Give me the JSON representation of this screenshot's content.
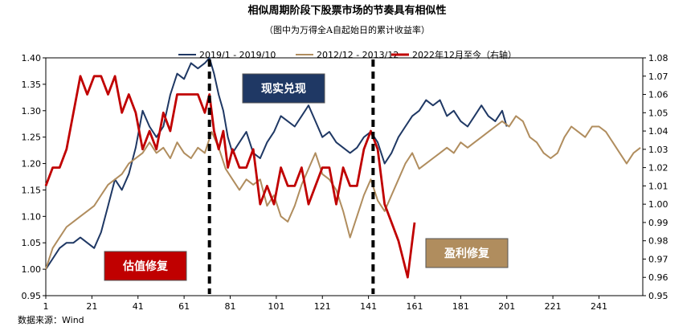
{
  "chart_data": {
    "type": "line",
    "title": "相似周期阶段下股票市场的节奏具有相似性",
    "subtitle": "（图中为万得全A自起始日的累计收益率）",
    "source": "数据来源：Wind",
    "x_ticks": [
      1,
      21,
      41,
      61,
      81,
      101,
      121,
      141,
      161,
      181,
      201,
      221,
      241
    ],
    "x_range": [
      1,
      260
    ],
    "y_left": {
      "range": [
        0.95,
        1.4
      ],
      "ticks": [
        "0.95",
        "1.00",
        "1.05",
        "1.10",
        "1.15",
        "1.20",
        "1.25",
        "1.30",
        "1.35",
        "1.40"
      ]
    },
    "y_right": {
      "range": [
        0.95,
        1.08
      ],
      "ticks": [
        "0.95",
        "0.96",
        "0.97",
        "0.98",
        "0.99",
        "1.00",
        "1.01",
        "1.02",
        "1.03",
        "1.04",
        "1.05",
        "1.06",
        "1.07",
        "1.08"
      ]
    },
    "legend_position": "top",
    "series": [
      {
        "name": "2019/1 - 2019/10",
        "color": "#1f3864",
        "axis": "left",
        "points": [
          [
            1,
            1.0
          ],
          [
            4,
            1.02
          ],
          [
            7,
            1.04
          ],
          [
            10,
            1.05
          ],
          [
            13,
            1.05
          ],
          [
            16,
            1.06
          ],
          [
            19,
            1.05
          ],
          [
            22,
            1.04
          ],
          [
            25,
            1.07
          ],
          [
            28,
            1.12
          ],
          [
            31,
            1.17
          ],
          [
            34,
            1.15
          ],
          [
            37,
            1.18
          ],
          [
            40,
            1.23
          ],
          [
            43,
            1.3
          ],
          [
            46,
            1.27
          ],
          [
            49,
            1.25
          ],
          [
            52,
            1.27
          ],
          [
            55,
            1.33
          ],
          [
            58,
            1.37
          ],
          [
            61,
            1.36
          ],
          [
            64,
            1.39
          ],
          [
            67,
            1.38
          ],
          [
            70,
            1.39
          ],
          [
            72,
            1.4
          ],
          [
            74,
            1.37
          ],
          [
            76,
            1.33
          ],
          [
            78,
            1.3
          ],
          [
            80,
            1.25
          ],
          [
            82,
            1.22
          ],
          [
            85,
            1.24
          ],
          [
            88,
            1.26
          ],
          [
            91,
            1.22
          ],
          [
            94,
            1.21
          ],
          [
            97,
            1.24
          ],
          [
            100,
            1.26
          ],
          [
            103,
            1.29
          ],
          [
            106,
            1.28
          ],
          [
            109,
            1.27
          ],
          [
            112,
            1.29
          ],
          [
            115,
            1.31
          ],
          [
            118,
            1.28
          ],
          [
            121,
            1.25
          ],
          [
            124,
            1.26
          ],
          [
            127,
            1.24
          ],
          [
            130,
            1.23
          ],
          [
            133,
            1.22
          ],
          [
            136,
            1.23
          ],
          [
            139,
            1.25
          ],
          [
            142,
            1.26
          ],
          [
            145,
            1.24
          ],
          [
            148,
            1.2
          ],
          [
            151,
            1.22
          ],
          [
            154,
            1.25
          ],
          [
            157,
            1.27
          ],
          [
            160,
            1.29
          ],
          [
            163,
            1.3
          ],
          [
            166,
            1.32
          ],
          [
            169,
            1.31
          ],
          [
            172,
            1.32
          ],
          [
            175,
            1.29
          ],
          [
            178,
            1.3
          ],
          [
            181,
            1.28
          ],
          [
            184,
            1.27
          ],
          [
            187,
            1.29
          ],
          [
            190,
            1.31
          ],
          [
            193,
            1.29
          ],
          [
            196,
            1.28
          ],
          [
            199,
            1.3
          ],
          [
            201,
            1.27
          ]
        ]
      },
      {
        "name": "2012/12 - 2013/12",
        "color": "#b08d5e",
        "axis": "left",
        "points": [
          [
            1,
            1.0
          ],
          [
            4,
            1.04
          ],
          [
            7,
            1.06
          ],
          [
            10,
            1.08
          ],
          [
            13,
            1.09
          ],
          [
            16,
            1.1
          ],
          [
            19,
            1.11
          ],
          [
            22,
            1.12
          ],
          [
            25,
            1.14
          ],
          [
            28,
            1.16
          ],
          [
            31,
            1.17
          ],
          [
            34,
            1.18
          ],
          [
            37,
            1.2
          ],
          [
            40,
            1.21
          ],
          [
            43,
            1.22
          ],
          [
            46,
            1.24
          ],
          [
            49,
            1.22
          ],
          [
            52,
            1.23
          ],
          [
            55,
            1.21
          ],
          [
            58,
            1.24
          ],
          [
            61,
            1.22
          ],
          [
            64,
            1.21
          ],
          [
            67,
            1.23
          ],
          [
            70,
            1.22
          ],
          [
            73,
            1.26
          ],
          [
            76,
            1.23
          ],
          [
            79,
            1.19
          ],
          [
            82,
            1.17
          ],
          [
            85,
            1.15
          ],
          [
            88,
            1.17
          ],
          [
            91,
            1.16
          ],
          [
            94,
            1.17
          ],
          [
            97,
            1.12
          ],
          [
            100,
            1.14
          ],
          [
            103,
            1.1
          ],
          [
            106,
            1.09
          ],
          [
            109,
            1.12
          ],
          [
            112,
            1.16
          ],
          [
            115,
            1.19
          ],
          [
            118,
            1.22
          ],
          [
            121,
            1.18
          ],
          [
            124,
            1.17
          ],
          [
            127,
            1.15
          ],
          [
            130,
            1.11
          ],
          [
            133,
            1.06
          ],
          [
            136,
            1.1
          ],
          [
            139,
            1.14
          ],
          [
            142,
            1.17
          ],
          [
            145,
            1.13
          ],
          [
            148,
            1.11
          ],
          [
            151,
            1.14
          ],
          [
            154,
            1.17
          ],
          [
            157,
            1.2
          ],
          [
            160,
            1.22
          ],
          [
            163,
            1.19
          ],
          [
            166,
            1.2
          ],
          [
            169,
            1.21
          ],
          [
            172,
            1.22
          ],
          [
            175,
            1.23
          ],
          [
            178,
            1.22
          ],
          [
            181,
            1.24
          ],
          [
            184,
            1.23
          ],
          [
            187,
            1.24
          ],
          [
            190,
            1.25
          ],
          [
            193,
            1.26
          ],
          [
            196,
            1.27
          ],
          [
            199,
            1.28
          ],
          [
            202,
            1.27
          ],
          [
            205,
            1.29
          ],
          [
            208,
            1.28
          ],
          [
            211,
            1.25
          ],
          [
            214,
            1.24
          ],
          [
            217,
            1.22
          ],
          [
            220,
            1.21
          ],
          [
            223,
            1.22
          ],
          [
            226,
            1.25
          ],
          [
            229,
            1.27
          ],
          [
            232,
            1.26
          ],
          [
            235,
            1.25
          ],
          [
            238,
            1.27
          ],
          [
            241,
            1.27
          ],
          [
            244,
            1.26
          ],
          [
            247,
            1.24
          ],
          [
            250,
            1.22
          ],
          [
            253,
            1.2
          ],
          [
            256,
            1.22
          ],
          [
            259,
            1.23
          ]
        ]
      },
      {
        "name": "2022年12月至今（右轴）",
        "color": "#c00000",
        "axis": "right",
        "points": [
          [
            1,
            1.01
          ],
          [
            4,
            1.02
          ],
          [
            7,
            1.02
          ],
          [
            10,
            1.03
          ],
          [
            13,
            1.05
          ],
          [
            16,
            1.07
          ],
          [
            19,
            1.06
          ],
          [
            22,
            1.07
          ],
          [
            25,
            1.07
          ],
          [
            28,
            1.06
          ],
          [
            31,
            1.07
          ],
          [
            34,
            1.05
          ],
          [
            37,
            1.06
          ],
          [
            40,
            1.05
          ],
          [
            43,
            1.03
          ],
          [
            46,
            1.04
          ],
          [
            49,
            1.03
          ],
          [
            52,
            1.05
          ],
          [
            55,
            1.04
          ],
          [
            58,
            1.06
          ],
          [
            61,
            1.06
          ],
          [
            64,
            1.06
          ],
          [
            67,
            1.06
          ],
          [
            70,
            1.05
          ],
          [
            72,
            1.06
          ],
          [
            74,
            1.04
          ],
          [
            76,
            1.03
          ],
          [
            78,
            1.04
          ],
          [
            80,
            1.02
          ],
          [
            82,
            1.03
          ],
          [
            85,
            1.02
          ],
          [
            88,
            1.02
          ],
          [
            91,
            1.03
          ],
          [
            94,
            1.0
          ],
          [
            97,
            1.01
          ],
          [
            100,
            1.0
          ],
          [
            103,
            1.02
          ],
          [
            106,
            1.01
          ],
          [
            109,
            1.01
          ],
          [
            112,
            1.02
          ],
          [
            115,
            1.0
          ],
          [
            118,
            1.01
          ],
          [
            121,
            1.02
          ],
          [
            124,
            1.02
          ],
          [
            127,
            1.0
          ],
          [
            130,
            1.02
          ],
          [
            133,
            1.01
          ],
          [
            136,
            1.01
          ],
          [
            139,
            1.03
          ],
          [
            142,
            1.04
          ],
          [
            145,
            1.03
          ],
          [
            148,
            1.0
          ],
          [
            151,
            0.99
          ],
          [
            154,
            0.98
          ],
          [
            156,
            0.97
          ],
          [
            158,
            0.96
          ],
          [
            160,
            0.98
          ],
          [
            161,
            0.99
          ]
        ]
      }
    ],
    "annotations": [
      {
        "text": "估值修复",
        "fill": "#c00000"
      },
      {
        "text": "现实兑现",
        "fill": "#1f3864"
      },
      {
        "text": "盈利修复",
        "fill": "#b08d5e"
      }
    ],
    "vertical_markers_x": [
      72,
      143
    ]
  }
}
